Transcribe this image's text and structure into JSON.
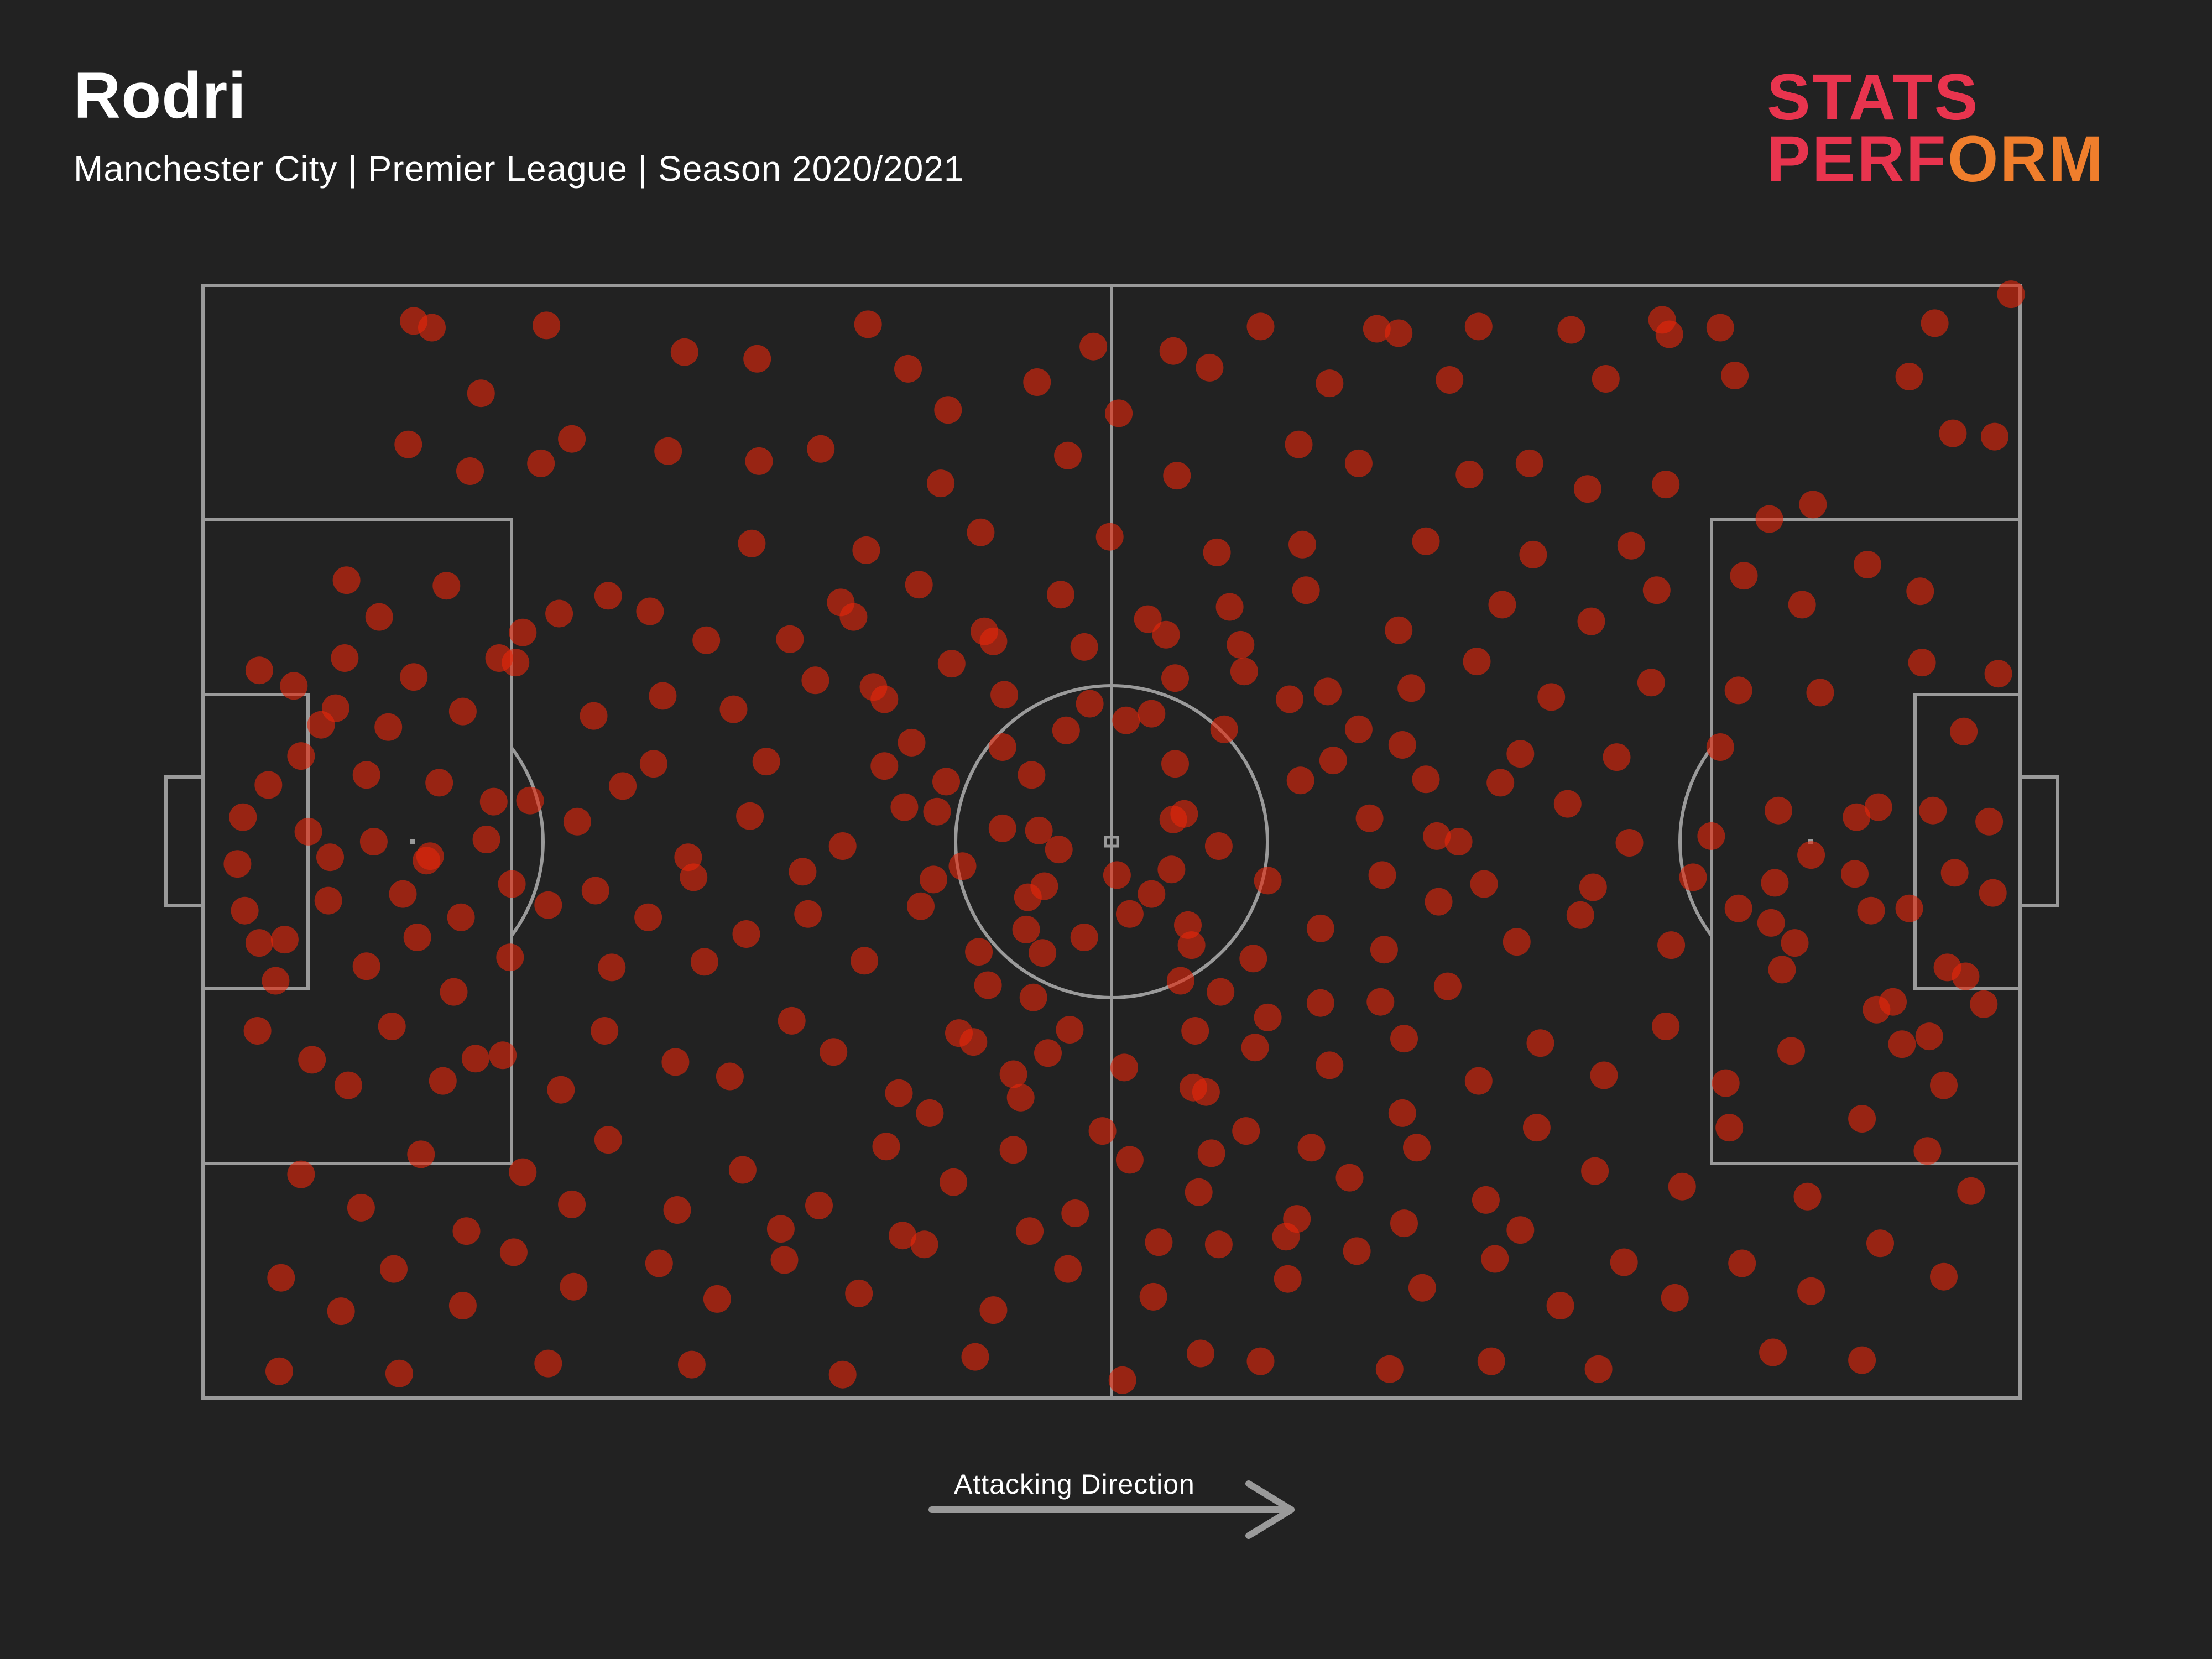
{
  "header": {
    "title": "Rodri",
    "subtitle": "Manchester City | Premier League | Season 2020/2021"
  },
  "logo": {
    "line1": "STATS",
    "line2_main": "PERF",
    "line2_tail": "ORM"
  },
  "footer": {
    "direction_label": "Attacking Direction"
  },
  "colors": {
    "background": "#222222",
    "pitch_lines": "#9a9a9a",
    "marker": "#e8260a",
    "logo_red": "#e8344e",
    "logo_orange": "#f07e2c"
  },
  "chart_data": {
    "type": "scatter",
    "title": "Rodri",
    "x_range": [
      0,
      100
    ],
    "y_range": [
      0,
      100
    ],
    "x_direction": "left-to-right attacking",
    "points": [
      [
        11.6,
        96.8
      ],
      [
        12.6,
        96.2
      ],
      [
        18.9,
        96.4
      ],
      [
        36.6,
        96.5
      ],
      [
        49.0,
        94.5
      ],
      [
        58.2,
        96.3
      ],
      [
        64.6,
        96.1
      ],
      [
        65.8,
        95.7
      ],
      [
        70.2,
        96.3
      ],
      [
        75.3,
        96.0
      ],
      [
        80.3,
        96.9
      ],
      [
        80.7,
        95.6
      ],
      [
        83.5,
        96.2
      ],
      [
        95.3,
        96.6
      ],
      [
        99.5,
        99.2
      ],
      [
        15.3,
        90.3
      ],
      [
        26.5,
        94.0
      ],
      [
        30.5,
        93.4
      ],
      [
        38.8,
        92.5
      ],
      [
        41.0,
        88.8
      ],
      [
        45.9,
        91.3
      ],
      [
        53.4,
        94.1
      ],
      [
        55.4,
        92.6
      ],
      [
        62.0,
        91.2
      ],
      [
        68.6,
        91.5
      ],
      [
        77.2,
        91.6
      ],
      [
        84.3,
        91.9
      ],
      [
        93.9,
        91.8
      ],
      [
        96.3,
        86.7
      ],
      [
        98.6,
        86.4
      ],
      [
        11.3,
        85.7
      ],
      [
        14.7,
        83.3
      ],
      [
        18.6,
        84.0
      ],
      [
        20.3,
        86.2
      ],
      [
        25.6,
        85.1
      ],
      [
        30.6,
        84.2
      ],
      [
        34.0,
        85.3
      ],
      [
        40.6,
        82.2
      ],
      [
        47.6,
        84.7
      ],
      [
        50.4,
        88.5
      ],
      [
        53.6,
        82.9
      ],
      [
        60.3,
        85.7
      ],
      [
        63.6,
        84.0
      ],
      [
        69.7,
        83.0
      ],
      [
        73.0,
        84.0
      ],
      [
        76.2,
        81.7
      ],
      [
        80.5,
        82.1
      ],
      [
        86.2,
        79.0
      ],
      [
        88.6,
        80.3
      ],
      [
        91.6,
        74.9
      ],
      [
        94.5,
        72.5
      ],
      [
        7.9,
        73.5
      ],
      [
        9.7,
        70.2
      ],
      [
        13.4,
        73.0
      ],
      [
        17.6,
        68.8
      ],
      [
        19.6,
        70.5
      ],
      [
        22.3,
        72.1
      ],
      [
        24.6,
        70.7
      ],
      [
        27.7,
        68.1
      ],
      [
        32.3,
        68.2
      ],
      [
        35.8,
        70.2
      ],
      [
        39.4,
        73.1
      ],
      [
        43.0,
        68.9
      ],
      [
        47.2,
        72.2
      ],
      [
        52.0,
        70.0
      ],
      [
        56.5,
        71.1
      ],
      [
        60.7,
        72.6
      ],
      [
        65.8,
        69.0
      ],
      [
        71.5,
        71.3
      ],
      [
        76.4,
        69.8
      ],
      [
        80.0,
        72.6
      ],
      [
        84.8,
        73.9
      ],
      [
        88.0,
        71.3
      ],
      [
        3.1,
        65.4
      ],
      [
        5.0,
        64.0
      ],
      [
        7.3,
        62.0
      ],
      [
        10.2,
        60.3
      ],
      [
        11.6,
        64.8
      ],
      [
        14.3,
        61.7
      ],
      [
        17.2,
        66.1
      ],
      [
        21.5,
        61.3
      ],
      [
        25.3,
        63.1
      ],
      [
        29.2,
        61.9
      ],
      [
        33.7,
        64.5
      ],
      [
        37.5,
        62.8
      ],
      [
        41.2,
        66.0
      ],
      [
        44.1,
        63.2
      ],
      [
        48.8,
        62.4
      ],
      [
        53.5,
        64.7
      ],
      [
        57.3,
        65.3
      ],
      [
        61.9,
        63.5
      ],
      [
        66.5,
        63.8
      ],
      [
        70.1,
        66.2
      ],
      [
        74.2,
        63.0
      ],
      [
        79.7,
        64.3
      ],
      [
        84.5,
        63.6
      ],
      [
        89.0,
        63.4
      ],
      [
        94.6,
        66.1
      ],
      [
        96.9,
        59.9
      ],
      [
        3.6,
        55.1
      ],
      [
        5.8,
        50.9
      ],
      [
        7.0,
        48.6
      ],
      [
        9.4,
        50.0
      ],
      [
        12.3,
        48.3
      ],
      [
        15.6,
        50.2
      ],
      [
        18.0,
        53.7
      ],
      [
        20.6,
        51.8
      ],
      [
        23.1,
        55.0
      ],
      [
        26.7,
        48.6
      ],
      [
        30.1,
        52.3
      ],
      [
        35.2,
        49.6
      ],
      [
        38.6,
        53.1
      ],
      [
        40.9,
        55.4
      ],
      [
        44.0,
        51.2
      ],
      [
        47.1,
        49.3
      ],
      [
        50.3,
        47.0
      ],
      [
        53.4,
        52.0
      ],
      [
        55.9,
        49.6
      ],
      [
        60.4,
        55.5
      ],
      [
        64.2,
        52.1
      ],
      [
        67.9,
        50.5
      ],
      [
        71.4,
        55.3
      ],
      [
        75.1,
        53.4
      ],
      [
        78.5,
        49.9
      ],
      [
        83.0,
        50.5
      ],
      [
        86.7,
        52.8
      ],
      [
        88.5,
        48.8
      ],
      [
        92.2,
        53.1
      ],
      [
        95.2,
        52.8
      ],
      [
        98.3,
        51.8
      ],
      [
        2.3,
        43.8
      ],
      [
        4.5,
        41.2
      ],
      [
        6.9,
        44.7
      ],
      [
        9.0,
        38.8
      ],
      [
        11.8,
        41.4
      ],
      [
        14.2,
        43.2
      ],
      [
        16.9,
        39.6
      ],
      [
        19.0,
        44.3
      ],
      [
        22.5,
        38.7
      ],
      [
        24.5,
        43.2
      ],
      [
        27.6,
        39.2
      ],
      [
        29.9,
        41.7
      ],
      [
        33.3,
        43.5
      ],
      [
        36.4,
        39.3
      ],
      [
        39.5,
        44.2
      ],
      [
        42.7,
        40.1
      ],
      [
        45.3,
        42.1
      ],
      [
        48.5,
        41.4
      ],
      [
        51.0,
        43.5
      ],
      [
        54.4,
        40.7
      ],
      [
        57.8,
        39.5
      ],
      [
        61.5,
        42.2
      ],
      [
        65.0,
        40.3
      ],
      [
        68.0,
        44.6
      ],
      [
        72.3,
        41.0
      ],
      [
        75.8,
        43.4
      ],
      [
        80.8,
        40.7
      ],
      [
        84.5,
        44.0
      ],
      [
        86.3,
        42.7
      ],
      [
        93.9,
        44.0
      ],
      [
        96.0,
        38.7
      ],
      [
        98.5,
        45.4
      ],
      [
        96.4,
        47.2
      ],
      [
        3.0,
        33.0
      ],
      [
        6.0,
        30.4
      ],
      [
        8.0,
        28.1
      ],
      [
        10.4,
        33.4
      ],
      [
        13.2,
        28.5
      ],
      [
        16.5,
        30.8
      ],
      [
        19.7,
        27.7
      ],
      [
        22.1,
        33.0
      ],
      [
        26.0,
        30.2
      ],
      [
        29.0,
        28.9
      ],
      [
        32.4,
        33.9
      ],
      [
        34.7,
        31.1
      ],
      [
        38.3,
        27.4
      ],
      [
        41.6,
        32.8
      ],
      [
        44.6,
        29.1
      ],
      [
        47.7,
        33.1
      ],
      [
        50.7,
        29.7
      ],
      [
        54.5,
        27.9
      ],
      [
        57.9,
        31.5
      ],
      [
        62.0,
        29.9
      ],
      [
        66.1,
        32.3
      ],
      [
        70.2,
        28.5
      ],
      [
        73.6,
        31.9
      ],
      [
        77.1,
        29.0
      ],
      [
        80.5,
        33.4
      ],
      [
        83.8,
        28.3
      ],
      [
        87.4,
        31.2
      ],
      [
        92.1,
        34.9
      ],
      [
        95.8,
        28.1
      ],
      [
        98.0,
        35.4
      ],
      [
        93.5,
        31.8
      ],
      [
        5.4,
        20.1
      ],
      [
        8.7,
        17.1
      ],
      [
        12.0,
        21.9
      ],
      [
        14.5,
        15.0
      ],
      [
        17.6,
        20.3
      ],
      [
        20.3,
        17.4
      ],
      [
        22.3,
        23.2
      ],
      [
        26.1,
        16.9
      ],
      [
        29.7,
        20.5
      ],
      [
        33.9,
        17.3
      ],
      [
        37.6,
        22.6
      ],
      [
        41.3,
        19.4
      ],
      [
        44.6,
        22.3
      ],
      [
        48.0,
        16.6
      ],
      [
        51.0,
        21.4
      ],
      [
        54.8,
        18.5
      ],
      [
        57.4,
        24.0
      ],
      [
        60.2,
        16.1
      ],
      [
        63.1,
        19.8
      ],
      [
        66.8,
        22.5
      ],
      [
        70.6,
        17.8
      ],
      [
        73.4,
        24.3
      ],
      [
        76.6,
        20.4
      ],
      [
        81.4,
        19.0
      ],
      [
        84.0,
        24.3
      ],
      [
        88.3,
        18.1
      ],
      [
        91.3,
        25.1
      ],
      [
        94.9,
        22.2
      ],
      [
        97.3,
        18.6
      ],
      [
        4.3,
        10.8
      ],
      [
        7.6,
        7.8
      ],
      [
        10.5,
        11.6
      ],
      [
        14.3,
        8.3
      ],
      [
        17.1,
        13.1
      ],
      [
        20.4,
        10.0
      ],
      [
        25.1,
        12.1
      ],
      [
        28.3,
        8.9
      ],
      [
        32.0,
        12.4
      ],
      [
        36.1,
        9.4
      ],
      [
        39.7,
        13.8
      ],
      [
        43.5,
        7.9
      ],
      [
        47.6,
        11.6
      ],
      [
        52.3,
        9.1
      ],
      [
        55.9,
        13.8
      ],
      [
        59.7,
        10.7
      ],
      [
        63.5,
        13.2
      ],
      [
        67.1,
        9.9
      ],
      [
        71.1,
        12.5
      ],
      [
        74.7,
        8.3
      ],
      [
        78.2,
        12.2
      ],
      [
        81.0,
        9.0
      ],
      [
        84.7,
        12.1
      ],
      [
        88.5,
        9.6
      ],
      [
        92.3,
        13.9
      ],
      [
        95.8,
        10.9
      ],
      [
        4.2,
        2.4
      ],
      [
        10.8,
        2.2
      ],
      [
        19.0,
        3.1
      ],
      [
        26.9,
        3.0
      ],
      [
        35.2,
        2.1
      ],
      [
        42.5,
        3.7
      ],
      [
        50.6,
        1.6
      ],
      [
        54.9,
        4.0
      ],
      [
        58.2,
        3.3
      ],
      [
        65.3,
        2.6
      ],
      [
        70.9,
        3.3
      ],
      [
        76.8,
        2.6
      ],
      [
        86.4,
        4.1
      ],
      [
        91.3,
        3.4
      ],
      [
        16.3,
        66.5
      ],
      [
        24.8,
        57.0
      ],
      [
        31.0,
        57.2
      ],
      [
        37.5,
        56.8
      ],
      [
        44.0,
        58.5
      ],
      [
        50.8,
        60.9
      ],
      [
        56.2,
        60.1
      ],
      [
        62.2,
        57.3
      ],
      [
        66.0,
        58.7
      ],
      [
        72.5,
        57.9
      ],
      [
        77.8,
        57.6
      ],
      [
        83.5,
        58.5
      ],
      [
        21.6,
        45.6
      ],
      [
        27.0,
        46.8
      ],
      [
        33.0,
        47.3
      ],
      [
        40.2,
        46.6
      ],
      [
        46.3,
        46.0
      ],
      [
        52.2,
        45.3
      ],
      [
        58.6,
        46.5
      ],
      [
        64.9,
        47.0
      ],
      [
        70.5,
        46.2
      ],
      [
        76.5,
        45.9
      ],
      [
        82.0,
        46.8
      ],
      [
        45.6,
        56.0
      ],
      [
        46.0,
        51.0
      ],
      [
        45.4,
        45.0
      ],
      [
        46.2,
        40.0
      ],
      [
        45.7,
        36.0
      ],
      [
        46.5,
        31.0
      ],
      [
        53.5,
        57.0
      ],
      [
        54.0,
        52.5
      ],
      [
        53.3,
        47.5
      ],
      [
        54.2,
        42.5
      ],
      [
        53.8,
        37.5
      ],
      [
        54.6,
        33.0
      ],
      [
        47.5,
        60.0
      ],
      [
        52.2,
        61.5
      ],
      [
        45.0,
        27.0
      ],
      [
        55.2,
        27.5
      ],
      [
        35.1,
        71.5
      ],
      [
        36.9,
        63.9
      ],
      [
        39.0,
        58.9
      ],
      [
        40.4,
        52.7
      ],
      [
        41.8,
        47.8
      ],
      [
        43.2,
        37.1
      ],
      [
        42.4,
        32.0
      ],
      [
        40.0,
        25.6
      ],
      [
        43.5,
        68.0
      ],
      [
        48.5,
        67.5
      ],
      [
        53.0,
        68.6
      ],
      [
        57.1,
        67.7
      ],
      [
        59.8,
        62.8
      ],
      [
        63.6,
        60.1
      ],
      [
        67.3,
        55.6
      ],
      [
        69.1,
        50.0
      ],
      [
        68.5,
        37.0
      ],
      [
        64.8,
        35.6
      ],
      [
        61.5,
        35.5
      ],
      [
        58.6,
        34.2
      ],
      [
        56.0,
        36.5
      ],
      [
        49.5,
        24.0
      ],
      [
        55.5,
        22.0
      ],
      [
        61.0,
        22.5
      ],
      [
        66.0,
        25.6
      ],
      [
        30.2,
        76.8
      ],
      [
        36.5,
        76.2
      ],
      [
        42.8,
        77.8
      ],
      [
        49.9,
        77.4
      ],
      [
        55.8,
        76.0
      ],
      [
        60.5,
        76.7
      ],
      [
        67.3,
        77.0
      ],
      [
        73.2,
        75.8
      ],
      [
        78.6,
        76.6
      ],
      [
        31.8,
        15.2
      ],
      [
        38.5,
        14.6
      ],
      [
        45.5,
        15.0
      ],
      [
        52.6,
        14.0
      ],
      [
        59.6,
        14.5
      ],
      [
        66.1,
        15.7
      ],
      [
        72.5,
        15.1
      ],
      [
        2.2,
        52.2
      ],
      [
        1.9,
        48.0
      ],
      [
        3.1,
        40.9
      ],
      [
        4.0,
        37.5
      ],
      [
        5.4,
        57.7
      ],
      [
        6.5,
        60.5
      ],
      [
        7.8,
        66.5
      ],
      [
        9.0,
        56.0
      ],
      [
        11.0,
        45.3
      ],
      [
        12.5,
        48.7
      ],
      [
        13.8,
        36.5
      ],
      [
        15.0,
        30.5
      ],
      [
        16.0,
        53.6
      ],
      [
        17.0,
        46.2
      ],
      [
        13.0,
        55.3
      ],
      [
        86.5,
        46.3
      ],
      [
        87.6,
        40.9
      ],
      [
        86.9,
        38.5
      ],
      [
        90.9,
        47.1
      ],
      [
        91.8,
        43.8
      ],
      [
        93.0,
        35.6
      ],
      [
        91.0,
        52.2
      ],
      [
        95.0,
        32.5
      ],
      [
        97.0,
        37.9
      ],
      [
        98.8,
        65.1
      ]
    ]
  }
}
